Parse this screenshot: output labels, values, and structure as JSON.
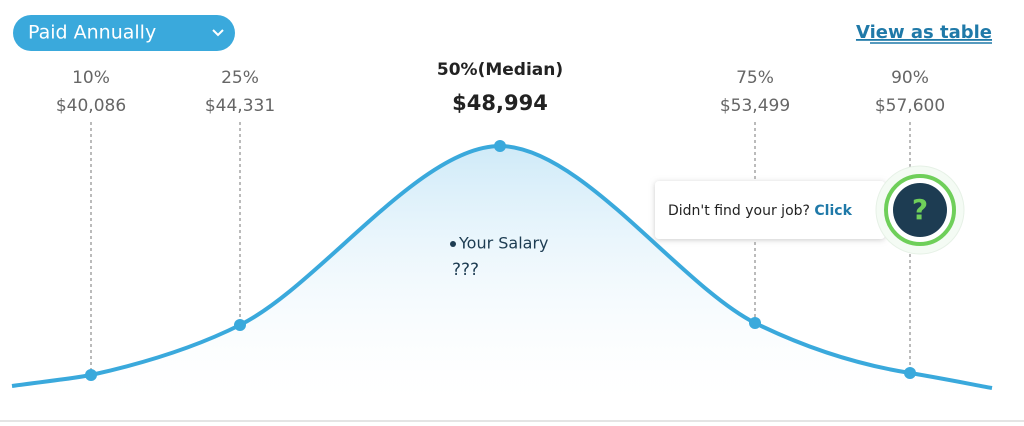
{
  "dropdown": {
    "label": "Paid Annually"
  },
  "link": "View as table",
  "percentiles": [
    {
      "label": "10%",
      "value": "$40,086"
    },
    {
      "label": "25%",
      "value": "$44,331"
    },
    {
      "label": "50%(Median)",
      "value": "$48,994"
    },
    {
      "label": "75%",
      "value": "$53,499"
    },
    {
      "label": "90%",
      "value": "$57,600"
    }
  ],
  "your_salary": {
    "label": "Your Salary",
    "value": "???"
  },
  "help": {
    "text": "Didn't find your job?",
    "link": "Click",
    "icon": "?"
  }
}
